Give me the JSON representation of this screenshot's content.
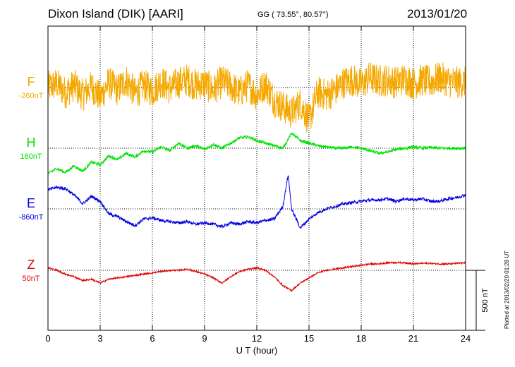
{
  "header": {
    "station": "Dixon Island (DIK)  [AARI]",
    "coords": "GG ( 73.55°,  80.57°)",
    "date": "2013/01/20"
  },
  "footer": {
    "plotted": "Plotted at 2013/02/20 01:28 UT"
  },
  "scale_label": "500 nT",
  "chart_data": {
    "type": "line",
    "xlabel": "U T (hour)",
    "xlim": [
      0,
      24
    ],
    "xticks": [
      0,
      3,
      6,
      9,
      12,
      15,
      18,
      21,
      24
    ],
    "grid": true,
    "offset_scale_nT": 500,
    "series": [
      {
        "name": "F",
        "baseline_label": "-260nT",
        "color": "#f5a800",
        "noise": 130,
        "x": [
          0,
          0.5,
          1,
          1.5,
          2,
          2.5,
          3,
          3.5,
          4,
          4.5,
          5,
          5.5,
          6,
          6.5,
          7,
          7.5,
          8,
          8.5,
          9,
          9.5,
          10,
          10.5,
          11,
          11.5,
          12,
          12.5,
          13,
          13.5,
          14,
          14.5,
          15,
          15.5,
          16,
          16.5,
          17,
          17.5,
          18,
          18.5,
          19,
          19.5,
          20,
          20.5,
          21,
          21.5,
          22,
          22.5,
          23,
          23.5,
          24
        ],
        "values": [
          0,
          30,
          -40,
          20,
          -60,
          10,
          -80,
          40,
          -20,
          60,
          -50,
          20,
          -30,
          50,
          -10,
          40,
          60,
          20,
          30,
          -20,
          50,
          10,
          -40,
          20,
          -60,
          30,
          -100,
          -150,
          -200,
          -120,
          -260,
          -40,
          -60,
          -20,
          40,
          60,
          20,
          80,
          50,
          60,
          40,
          70,
          30,
          60,
          40,
          80,
          50,
          40,
          40
        ]
      },
      {
        "name": "H",
        "baseline_label": "160nT",
        "color": "#00e000",
        "noise": 12,
        "x": [
          0,
          0.5,
          1,
          1.5,
          2,
          2.5,
          3,
          3.5,
          4,
          4.5,
          5,
          5.5,
          6,
          6.5,
          7,
          7.5,
          8,
          8.5,
          9,
          9.5,
          10,
          10.5,
          11,
          11.5,
          12,
          12.5,
          13,
          13.5,
          14,
          14.5,
          15,
          15.5,
          16,
          16.5,
          17,
          17.5,
          18,
          18.5,
          19,
          19.5,
          20,
          20.5,
          21,
          21.5,
          22,
          22.5,
          23,
          23.5,
          24
        ],
        "values": [
          -200,
          -160,
          -190,
          -140,
          -180,
          -110,
          -130,
          -60,
          -90,
          -40,
          -70,
          -20,
          -30,
          10,
          -20,
          40,
          0,
          20,
          -10,
          30,
          0,
          40,
          80,
          90,
          60,
          40,
          20,
          0,
          120,
          60,
          40,
          20,
          10,
          0,
          0,
          10,
          0,
          -20,
          -40,
          -30,
          -10,
          0,
          10,
          0,
          5,
          0,
          0,
          0,
          0
        ]
      },
      {
        "name": "E",
        "baseline_label": "-860nT",
        "color": "#0000e0",
        "noise": 12,
        "x": [
          0,
          0.5,
          1,
          1.5,
          2,
          2.5,
          3,
          3.5,
          4,
          4.5,
          5,
          5.5,
          6,
          6.5,
          7,
          7.5,
          8,
          8.5,
          9,
          9.5,
          10,
          10.5,
          11,
          11.5,
          12,
          12.5,
          13,
          13.5,
          13.8,
          14,
          14.5,
          15,
          15.5,
          16,
          16.5,
          17,
          17.5,
          18,
          18.5,
          19,
          19.5,
          20,
          20.5,
          21,
          21.5,
          22,
          22.5,
          23,
          23.5,
          24
        ],
        "values": [
          150,
          170,
          160,
          110,
          40,
          100,
          60,
          -40,
          -60,
          -100,
          -130,
          -80,
          -70,
          -90,
          -100,
          -110,
          -100,
          -120,
          -110,
          -120,
          -140,
          -110,
          -120,
          -100,
          -110,
          -90,
          -80,
          20,
          270,
          0,
          -150,
          -80,
          -30,
          0,
          20,
          40,
          50,
          60,
          70,
          70,
          80,
          60,
          80,
          70,
          80,
          60,
          60,
          80,
          90,
          110
        ]
      },
      {
        "name": "Z",
        "baseline_label": "50nT",
        "color": "#e00000",
        "noise": 6,
        "x": [
          0,
          0.5,
          1,
          1.5,
          2,
          2.5,
          3,
          3.5,
          4,
          4.5,
          5,
          5.5,
          6,
          6.5,
          7,
          7.5,
          8,
          8.5,
          9,
          9.5,
          10,
          10.5,
          11,
          11.5,
          12,
          12.5,
          13,
          13.5,
          14,
          14.5,
          15,
          15.5,
          16,
          16.5,
          17,
          17.5,
          18,
          18.5,
          19,
          19.5,
          20,
          20.5,
          21,
          21.5,
          22,
          22.5,
          23,
          23.5,
          24
        ],
        "values": [
          20,
          0,
          -30,
          -50,
          -80,
          -70,
          -100,
          -70,
          -60,
          -50,
          -40,
          -30,
          -20,
          -10,
          0,
          0,
          10,
          -10,
          -30,
          -60,
          -100,
          -50,
          -10,
          10,
          20,
          0,
          -50,
          -120,
          -160,
          -100,
          -60,
          -20,
          0,
          10,
          20,
          30,
          40,
          50,
          50,
          60,
          60,
          60,
          50,
          55,
          55,
          50,
          50,
          55,
          60
        ]
      }
    ]
  }
}
